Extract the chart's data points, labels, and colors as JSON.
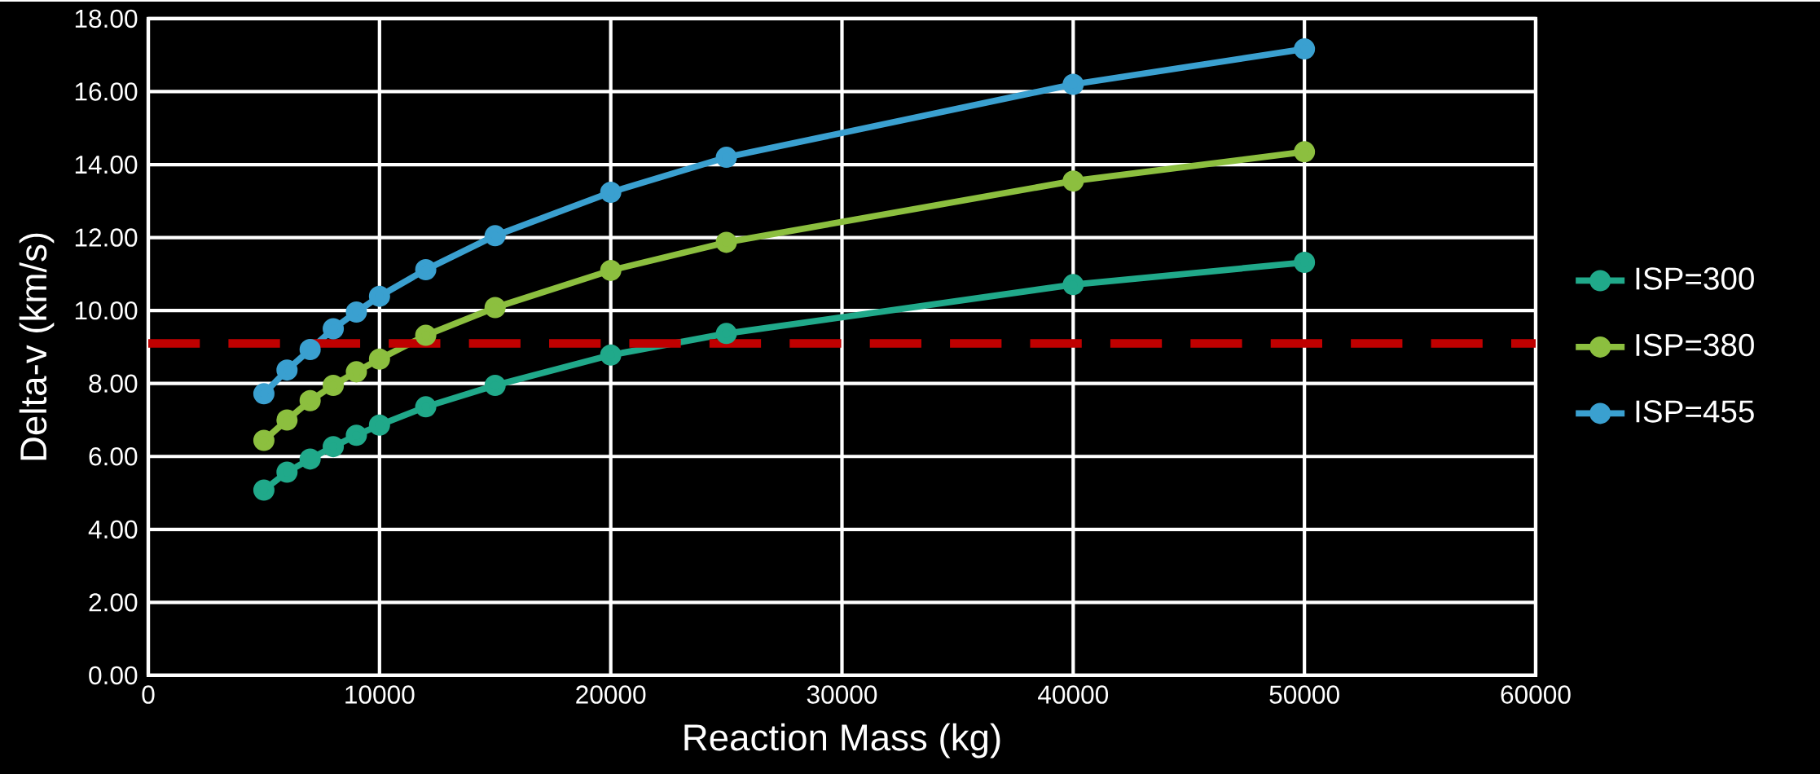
{
  "chart_data": {
    "type": "line",
    "xlabel": "Reaction Mass (kg)",
    "ylabel": "Delta-v (km/s)",
    "x": [
      5000,
      6000,
      7000,
      8000,
      9000,
      10000,
      12000,
      15000,
      20000,
      25000,
      40000,
      50000
    ],
    "series": [
      {
        "name": "ISP=300",
        "color": "#20a98a",
        "values": [
          5.08,
          5.57,
          5.93,
          6.27,
          6.58,
          6.86,
          7.36,
          7.95,
          8.78,
          9.37,
          10.71,
          11.32
        ]
      },
      {
        "name": "ISP=380",
        "color": "#8cbf3f",
        "values": [
          6.44,
          7.0,
          7.53,
          7.95,
          8.32,
          8.67,
          9.32,
          10.08,
          11.1,
          11.87,
          13.55,
          14.35
        ]
      },
      {
        "name": "ISP=455",
        "color": "#3aa0d0",
        "values": [
          7.72,
          8.37,
          8.93,
          9.5,
          9.96,
          10.39,
          11.12,
          12.05,
          13.24,
          14.2,
          16.2,
          17.17
        ]
      }
    ],
    "xlim": [
      0,
      60000
    ],
    "xticks": [
      0,
      10000,
      20000,
      30000,
      40000,
      50000,
      60000
    ],
    "ylim": [
      0,
      18
    ],
    "yticks": [
      {
        "value": 0,
        "label": "0.00"
      },
      {
        "value": 2,
        "label": "2.00"
      },
      {
        "value": 4,
        "label": "4.00"
      },
      {
        "value": 6,
        "label": "6.00"
      },
      {
        "value": 8,
        "label": "8.00"
      },
      {
        "value": 10,
        "label": "10.00"
      },
      {
        "value": 12,
        "label": "12.00"
      },
      {
        "value": 14,
        "label": "14.00"
      },
      {
        "value": 16,
        "label": "16.00"
      },
      {
        "value": 18,
        "label": "18.00"
      }
    ],
    "ref_lines": [
      {
        "axis": "y",
        "value": 9.1,
        "color": "#c00000",
        "line_style": "dashed"
      }
    ],
    "grid": true,
    "legend": "right",
    "marker": "circle",
    "line_style": "solid"
  }
}
